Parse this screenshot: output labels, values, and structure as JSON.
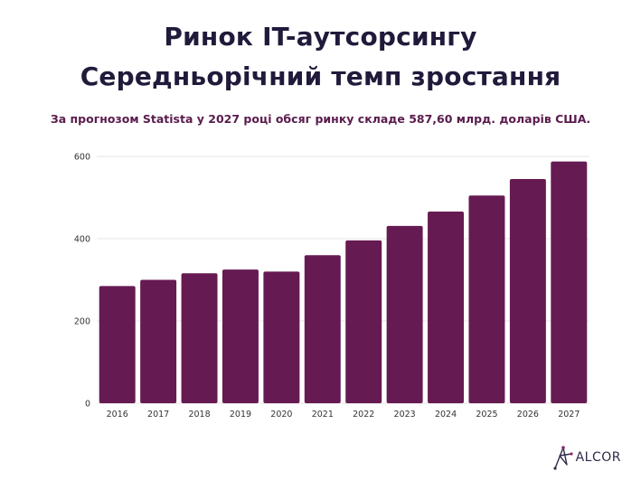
{
  "title_line_1": "Ринок IT-аутсорсингу",
  "title_line_2": "Середньорічний темп зростання",
  "subtitle": "За прогнозом Statista у 2027 році обсяг ринку складе 587,60 млрд. доларів США.",
  "logo": {
    "text": "ALCOR",
    "icon": "alcor-star-logo-icon"
  },
  "colors": {
    "bar": "#661a52",
    "grid": "#e4e4e4",
    "tick_text": "#333333"
  },
  "chart_data": {
    "type": "bar",
    "categories": [
      "2016",
      "2017",
      "2018",
      "2019",
      "2020",
      "2021",
      "2022",
      "2023",
      "2024",
      "2025",
      "2026",
      "2027"
    ],
    "values": [
      285,
      300,
      316,
      325,
      320,
      360,
      396,
      431,
      466,
      505,
      545,
      587.6
    ],
    "ylim": [
      0,
      600
    ],
    "yticks": [
      0,
      200,
      400,
      600
    ],
    "grid": true,
    "legend": "none",
    "title": "",
    "xlabel": "",
    "ylabel": ""
  }
}
